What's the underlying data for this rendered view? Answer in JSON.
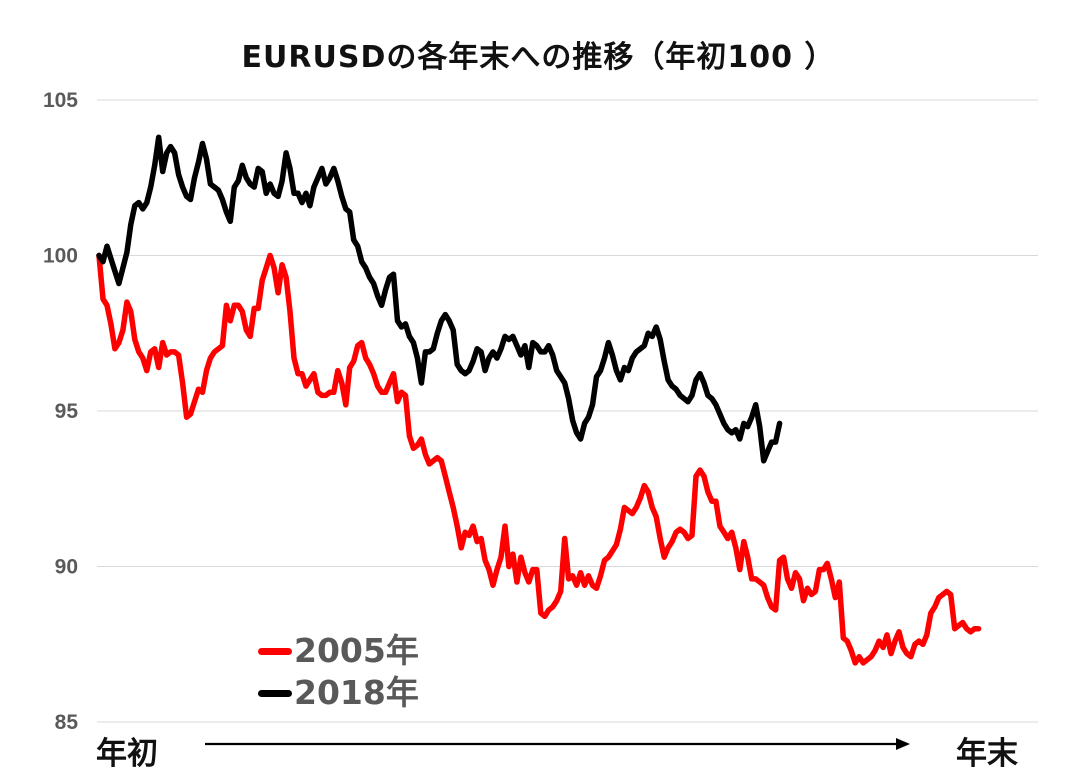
{
  "chart_data": {
    "type": "line",
    "title": "EURUSDの各年末への推移（年初100 ）",
    "ylim": [
      85,
      105
    ],
    "yticks": [
      "85",
      "90",
      "95",
      "100",
      "105"
    ],
    "x_start_label": "年初",
    "x_end_label": "年末",
    "grid": true,
    "legend_position": "bottom-left",
    "series": [
      {
        "name": "2005年",
        "color": "#ff0000",
        "values": [
          100.0,
          98.6,
          98.4,
          97.8,
          97.0,
          97.2,
          97.6,
          98.5,
          98.2,
          97.3,
          96.9,
          96.7,
          96.3,
          96.9,
          97.0,
          96.4,
          97.2,
          96.8,
          96.9,
          96.9,
          96.8,
          95.9,
          94.8,
          94.9,
          95.3,
          95.7,
          95.6,
          96.3,
          96.7,
          96.9,
          97.0,
          97.1,
          98.4,
          97.9,
          98.4,
          98.4,
          98.2,
          97.6,
          97.4,
          98.3,
          98.3,
          99.2,
          99.6,
          100.0,
          99.6,
          98.8,
          99.7,
          99.3,
          98.2,
          96.7,
          96.2,
          96.2,
          95.8,
          96.0,
          96.2,
          95.6,
          95.5,
          95.5,
          95.6,
          95.6,
          96.3,
          95.9,
          95.2,
          96.4,
          96.6,
          97.1,
          97.2,
          96.7,
          96.5,
          96.2,
          95.8,
          95.6,
          95.6,
          95.9,
          96.2,
          95.3,
          95.6,
          95.5,
          94.2,
          93.8,
          93.9,
          94.1,
          93.6,
          93.3,
          93.4,
          93.5,
          93.4,
          92.9,
          92.4,
          91.9,
          91.3,
          90.6,
          91.1,
          91.0,
          91.3,
          90.8,
          90.9,
          90.2,
          89.9,
          89.4,
          89.9,
          90.3,
          91.3,
          90.0,
          90.4,
          89.5,
          90.3,
          89.8,
          89.5,
          89.9,
          89.9,
          88.5,
          88.4,
          88.6,
          88.7,
          88.9,
          89.2,
          90.9,
          89.6,
          89.7,
          89.4,
          89.8,
          89.4,
          89.7,
          89.4,
          89.3,
          89.7,
          90.2,
          90.3,
          90.5,
          90.7,
          91.2,
          91.9,
          91.8,
          91.7,
          91.9,
          92.2,
          92.6,
          92.4,
          91.9,
          91.6,
          90.9,
          90.3,
          90.6,
          90.8,
          91.1,
          91.2,
          91.1,
          90.9,
          91.0,
          92.9,
          93.1,
          92.9,
          92.4,
          92.1,
          92.1,
          91.3,
          91.1,
          90.9,
          91.1,
          90.6,
          89.9,
          90.8,
          90.3,
          89.6,
          89.6,
          89.5,
          89.4,
          89.0,
          88.7,
          88.6,
          90.2,
          90.3,
          89.6,
          89.3,
          89.8,
          89.6,
          88.9,
          89.3,
          89.1,
          89.2,
          89.9,
          89.9,
          90.1,
          89.6,
          89.0,
          89.5,
          87.7,
          87.6,
          87.3,
          86.9,
          87.1,
          86.9,
          87.0,
          87.1,
          87.3,
          87.6,
          87.4,
          87.8,
          87.2,
          87.6,
          87.9,
          87.4,
          87.2,
          87.1,
          87.5,
          87.6,
          87.5,
          87.8,
          88.5,
          88.7,
          89.0,
          89.1,
          89.2,
          89.1,
          88.0,
          88.1,
          88.2,
          88.0,
          87.9,
          88.0,
          88.0
        ]
      },
      {
        "name": "2018年",
        "color": "#000000",
        "values": [
          100.0,
          99.8,
          100.3,
          99.9,
          99.5,
          99.1,
          99.6,
          100.1,
          101.0,
          101.6,
          101.7,
          101.5,
          101.7,
          102.2,
          102.9,
          103.8,
          102.7,
          103.3,
          103.5,
          103.3,
          102.6,
          102.2,
          101.9,
          101.8,
          102.5,
          103.0,
          103.6,
          103.1,
          102.3,
          102.2,
          102.1,
          101.8,
          101.4,
          101.1,
          102.2,
          102.4,
          102.9,
          102.5,
          102.3,
          102.2,
          102.8,
          102.7,
          102.0,
          102.3,
          102.0,
          101.9,
          102.4,
          103.3,
          102.8,
          102.0,
          102.0,
          101.7,
          102.0,
          101.6,
          102.2,
          102.5,
          102.8,
          102.3,
          102.5,
          102.8,
          102.4,
          101.9,
          101.5,
          101.4,
          100.5,
          100.3,
          99.8,
          99.6,
          99.3,
          99.1,
          98.7,
          98.4,
          98.9,
          99.3,
          99.4,
          97.9,
          97.7,
          97.8,
          97.4,
          97.2,
          96.7,
          95.9,
          96.9,
          96.9,
          97.0,
          97.5,
          97.9,
          98.1,
          97.9,
          97.6,
          96.5,
          96.3,
          96.2,
          96.3,
          96.6,
          97.0,
          96.9,
          96.3,
          96.7,
          96.9,
          96.7,
          97.0,
          97.4,
          97.3,
          97.4,
          97.1,
          96.8,
          97.1,
          96.4,
          97.2,
          97.1,
          96.9,
          96.9,
          97.1,
          96.8,
          96.3,
          96.1,
          95.9,
          95.4,
          94.7,
          94.3,
          94.1,
          94.6,
          94.8,
          95.2,
          96.1,
          96.3,
          96.7,
          97.2,
          96.8,
          96.3,
          96.0,
          96.4,
          96.3,
          96.7,
          96.9,
          97.0,
          97.1,
          97.5,
          97.4,
          97.7,
          97.3,
          96.6,
          96.0,
          95.8,
          95.7,
          95.5,
          95.4,
          95.3,
          95.5,
          96.0,
          96.2,
          95.9,
          95.5,
          95.4,
          95.2,
          94.9,
          94.6,
          94.4,
          94.3,
          94.4,
          94.1,
          94.6,
          94.5,
          94.8,
          95.2,
          94.5,
          93.4,
          93.7,
          94.0,
          94.0,
          94.6
        ]
      }
    ]
  }
}
